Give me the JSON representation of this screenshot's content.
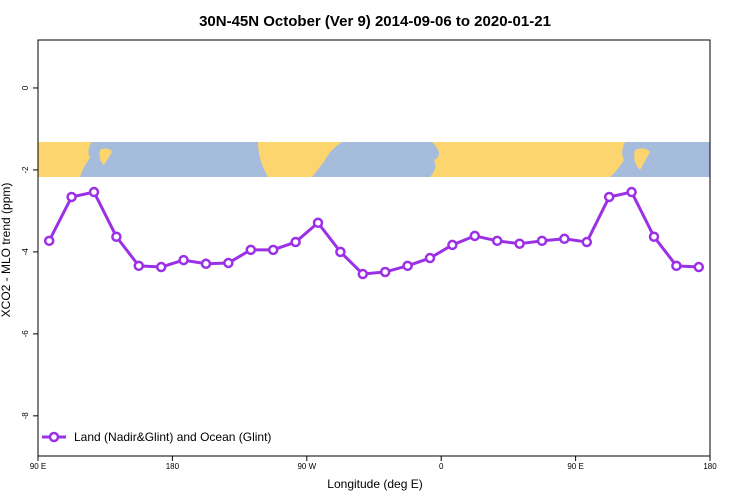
{
  "chart_data": {
    "type": "line",
    "title": "30N-45N October (Ver 9)   2014-09-06 to 2020-01-21",
    "x_label": "Longitude (deg E)",
    "y_label": "XCO2 - MLO trend (ppm)",
    "x": [
      97.5,
      112.5,
      127.5,
      142.5,
      157.5,
      172.5,
      187.5,
      202.5,
      217.5,
      232.5,
      247.5,
      262.5,
      277.5,
      292.5,
      307.5,
      322.5,
      337.5,
      352.5,
      367.5,
      382.5,
      397.5,
      412.5,
      427.5,
      442.5,
      457.5,
      472.5,
      487.5,
      502.5,
      517.5,
      532.5
    ],
    "series": [
      {
        "name": "Land (Nadir&Glint) and Ocean (Glint)",
        "color": "#9b30e6",
        "values": [
          -3.73,
          -2.66,
          -2.54,
          -3.63,
          -4.34,
          -4.37,
          -4.2,
          -4.29,
          -4.27,
          -3.95,
          -3.95,
          -3.76,
          -3.29,
          -4.0,
          -4.54,
          -4.49,
          -4.34,
          -4.15,
          -3.83,
          -3.61,
          -3.73,
          -3.8,
          -3.73,
          -3.68,
          -3.76,
          -2.66,
          -2.54,
          -3.63,
          -4.34,
          -4.37
        ]
      }
    ],
    "xlim": [
      90,
      540
    ],
    "xticks": [
      {
        "value": 90,
        "label": "90 E"
      },
      {
        "value": 180,
        "label": "180"
      },
      {
        "value": 270,
        "label": "90 W"
      },
      {
        "value": 360,
        "label": "0"
      },
      {
        "value": 450,
        "label": "90 E"
      },
      {
        "value": 540,
        "label": "180"
      }
    ],
    "ylim": [
      -8.98,
      1.17
    ],
    "yticks": [
      0,
      -2,
      -4,
      -6,
      -8
    ],
    "legend": "bottom-left"
  }
}
